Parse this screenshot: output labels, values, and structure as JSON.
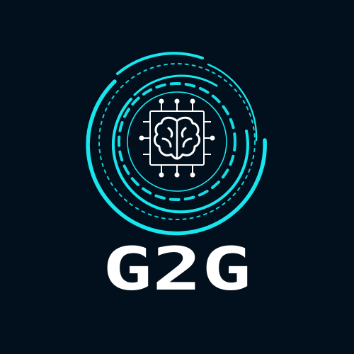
{
  "logo": {
    "icon": "brain-chip-icon",
    "brand_text": "G2G",
    "colors": {
      "background": "#02101d",
      "accent": "#18e6ee",
      "chip_stroke": "#ffffff",
      "brain_stroke": "#ffffff",
      "text": "#ffffff"
    }
  }
}
